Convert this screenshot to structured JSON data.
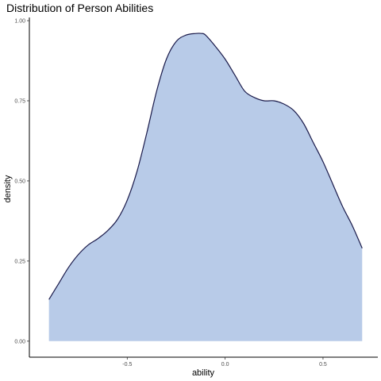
{
  "chart_data": {
    "type": "area",
    "title": "Distribution of Person Abilities",
    "xlabel": "ability",
    "ylabel": "density",
    "xlim": [
      -1.0,
      0.78
    ],
    "ylim": [
      -0.05,
      1.01
    ],
    "x_ticks": [
      -0.5,
      0.0,
      0.5
    ],
    "x_tick_labels": [
      "-0.5",
      "0.0",
      "0.5"
    ],
    "y_ticks": [
      0.0,
      0.25,
      0.5,
      0.75,
      1.0
    ],
    "y_tick_labels": [
      "0.00",
      "0.25",
      "0.50",
      "0.75",
      "1.00"
    ],
    "grid": false,
    "legend": "none",
    "fill_color": "#b8cbe8",
    "line_color": "#1a1a4a",
    "series": [
      {
        "x": [
          -0.9,
          -0.85,
          -0.8,
          -0.75,
          -0.7,
          -0.65,
          -0.6,
          -0.55,
          -0.5,
          -0.45,
          -0.4,
          -0.35,
          -0.3,
          -0.25,
          -0.2,
          -0.15,
          -0.12,
          -0.1,
          -0.05,
          0.0,
          0.05,
          0.1,
          0.15,
          0.2,
          0.25,
          0.3,
          0.35,
          0.4,
          0.45,
          0.5,
          0.55,
          0.6,
          0.65,
          0.7
        ],
        "y": [
          0.13,
          0.18,
          0.23,
          0.27,
          0.3,
          0.32,
          0.345,
          0.38,
          0.44,
          0.53,
          0.65,
          0.78,
          0.88,
          0.935,
          0.955,
          0.96,
          0.96,
          0.955,
          0.92,
          0.88,
          0.83,
          0.78,
          0.76,
          0.75,
          0.75,
          0.74,
          0.72,
          0.68,
          0.62,
          0.56,
          0.49,
          0.42,
          0.36,
          0.29
        ]
      }
    ]
  }
}
